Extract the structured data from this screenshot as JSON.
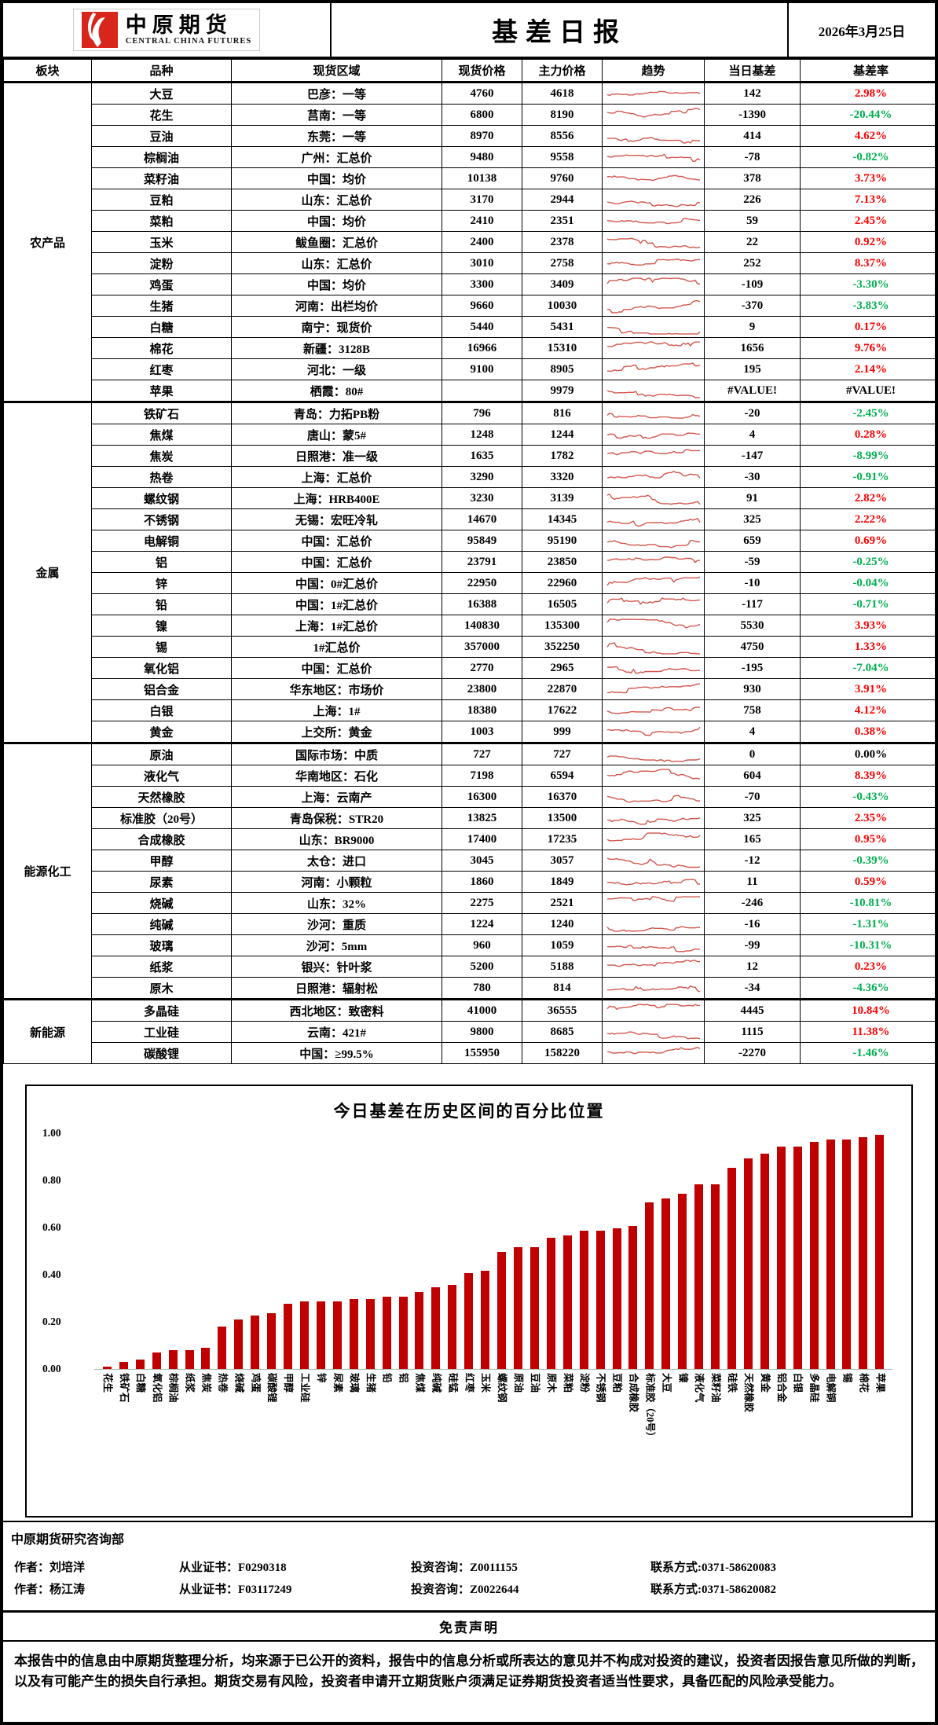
{
  "header": {
    "logo_cn": "中原期货",
    "logo_en": "CENTRAL CHINA FUTURES",
    "title": "基差日报",
    "date": "2026年3月25日"
  },
  "colors": {
    "positive": "#ff0000",
    "negative": "#00b050",
    "neutral": "#000000",
    "bar": "#c00000",
    "spark": "#d2564e",
    "logo_red": "#d9261c"
  },
  "table": {
    "columns": [
      "板块",
      "品种",
      "现货区域",
      "现货价格",
      "主力价格",
      "趋势",
      "当日基差",
      "基差率"
    ],
    "sections": [
      {
        "name": "农产品",
        "rows": [
          [
            "大豆",
            "巴彦：一等",
            "4760",
            "4618",
            "142",
            "2.98%"
          ],
          [
            "花生",
            "莒南：一等",
            "6800",
            "8190",
            "-1390",
            "-20.44%"
          ],
          [
            "豆油",
            "东莞：一等",
            "8970",
            "8556",
            "414",
            "4.62%"
          ],
          [
            "棕榈油",
            "广州：汇总价",
            "9480",
            "9558",
            "-78",
            "-0.82%"
          ],
          [
            "菜籽油",
            "中国：均价",
            "10138",
            "9760",
            "378",
            "3.73%"
          ],
          [
            "豆粕",
            "山东：汇总价",
            "3170",
            "2944",
            "226",
            "7.13%"
          ],
          [
            "菜粕",
            "中国：均价",
            "2410",
            "2351",
            "59",
            "2.45%"
          ],
          [
            "玉米",
            "鲅鱼圈：汇总价",
            "2400",
            "2378",
            "22",
            "0.92%"
          ],
          [
            "淀粉",
            "山东：汇总价",
            "3010",
            "2758",
            "252",
            "8.37%"
          ],
          [
            "鸡蛋",
            "中国：均价",
            "3300",
            "3409",
            "-109",
            "-3.30%"
          ],
          [
            "生猪",
            "河南：出栏均价",
            "9660",
            "10030",
            "-370",
            "-3.83%"
          ],
          [
            "白糖",
            "南宁：现货价",
            "5440",
            "5431",
            "9",
            "0.17%"
          ],
          [
            "棉花",
            "新疆：3128B",
            "16966",
            "15310",
            "1656",
            "9.76%"
          ],
          [
            "红枣",
            "河北：一级",
            "9100",
            "8905",
            "195",
            "2.14%"
          ],
          [
            "苹果",
            "栖霞：80#",
            "",
            "9979",
            "#VALUE!",
            "#VALUE!"
          ]
        ]
      },
      {
        "name": "金属",
        "rows": [
          [
            "铁矿石",
            "青岛：力拓PB粉",
            "796",
            "816",
            "-20",
            "-2.45%"
          ],
          [
            "焦煤",
            "唐山：蒙5#",
            "1248",
            "1244",
            "4",
            "0.28%"
          ],
          [
            "焦炭",
            "日照港：准一级",
            "1635",
            "1782",
            "-147",
            "-8.99%"
          ],
          [
            "热卷",
            "上海：汇总价",
            "3290",
            "3320",
            "-30",
            "-0.91%"
          ],
          [
            "螺纹钢",
            "上海：HRB400E",
            "3230",
            "3139",
            "91",
            "2.82%"
          ],
          [
            "不锈钢",
            "无锡：宏旺冷轧",
            "14670",
            "14345",
            "325",
            "2.22%"
          ],
          [
            "电解铜",
            "中国：汇总价",
            "95849",
            "95190",
            "659",
            "0.69%"
          ],
          [
            "铝",
            "中国：汇总价",
            "23791",
            "23850",
            "-59",
            "-0.25%"
          ],
          [
            "锌",
            "中国：0#汇总价",
            "22950",
            "22960",
            "-10",
            "-0.04%"
          ],
          [
            "铅",
            "中国：1#汇总价",
            "16388",
            "16505",
            "-117",
            "-0.71%"
          ],
          [
            "镍",
            "上海：1#汇总价",
            "140830",
            "135300",
            "5530",
            "3.93%"
          ],
          [
            "锡",
            "1#汇总价",
            "357000",
            "352250",
            "4750",
            "1.33%"
          ],
          [
            "氧化铝",
            "中国：汇总价",
            "2770",
            "2965",
            "-195",
            "-7.04%"
          ],
          [
            "铝合金",
            "华东地区：市场价",
            "23800",
            "22870",
            "930",
            "3.91%"
          ],
          [
            "白银",
            "上海：1#",
            "18380",
            "17622",
            "758",
            "4.12%"
          ],
          [
            "黄金",
            "上交所：黄金",
            "1003",
            "999",
            "4",
            "0.38%"
          ]
        ]
      },
      {
        "name": "能源化工",
        "rows": [
          [
            "原油",
            "国际市场：中质",
            "727",
            "727",
            "0",
            "0.00%"
          ],
          [
            "液化气",
            "华南地区：石化",
            "7198",
            "6594",
            "604",
            "8.39%"
          ],
          [
            "天然橡胶",
            "上海：云南产",
            "16300",
            "16370",
            "-70",
            "-0.43%"
          ],
          [
            "标准胶（20号）",
            "青岛保税：STR20",
            "13825",
            "13500",
            "325",
            "2.35%"
          ],
          [
            "合成橡胶",
            "山东：BR9000",
            "17400",
            "17235",
            "165",
            "0.95%"
          ],
          [
            "甲醇",
            "太仓：进口",
            "3045",
            "3057",
            "-12",
            "-0.39%"
          ],
          [
            "尿素",
            "河南：小颗粒",
            "1860",
            "1849",
            "11",
            "0.59%"
          ],
          [
            "烧碱",
            "山东：32%",
            "2275",
            "2521",
            "-246",
            "-10.81%"
          ],
          [
            "纯碱",
            "沙河：重质",
            "1224",
            "1240",
            "-16",
            "-1.31%"
          ],
          [
            "玻璃",
            "沙河：5mm",
            "960",
            "1059",
            "-99",
            "-10.31%"
          ],
          [
            "纸浆",
            "银兴：针叶浆",
            "5200",
            "5188",
            "12",
            "0.23%"
          ],
          [
            "原木",
            "日照港：辐射松",
            "780",
            "814",
            "-34",
            "-4.36%"
          ]
        ]
      },
      {
        "name": "新能源",
        "rows": [
          [
            "多晶硅",
            "西北地区：致密料",
            "41000",
            "36555",
            "4445",
            "10.84%"
          ],
          [
            "工业硅",
            "云南：421#",
            "9800",
            "8685",
            "1115",
            "11.38%"
          ],
          [
            "碳酸锂",
            "中国：≥99.5%",
            "155950",
            "158220",
            "-2270",
            "-1.46%"
          ]
        ]
      }
    ]
  },
  "chart_data": {
    "type": "bar",
    "title": "今日基差在历史区间的百分比位置",
    "xlabel": "",
    "ylabel": "",
    "ylim": [
      0,
      1
    ],
    "yticks": [
      "1.00",
      "0.80",
      "0.60",
      "0.40",
      "0.20",
      "0.00"
    ],
    "grid": false,
    "legend": "none",
    "bar_color": "#c00000",
    "categories": [
      "花生",
      "铁矿石",
      "白糖",
      "氧化铝",
      "棕榈油",
      "纸浆",
      "焦炭",
      "热卷",
      "烧碱",
      "鸡蛋",
      "碳酸锂",
      "甲醇",
      "工业硅",
      "锌",
      "尿素",
      "玻璃",
      "生猪",
      "铅",
      "铝",
      "焦煤",
      "纯碱",
      "硅锰",
      "红枣",
      "玉米",
      "螺纹钢",
      "原油",
      "豆油",
      "原木",
      "菜粕",
      "淀粉",
      "不锈钢",
      "豆粕",
      "合成橡胶",
      "标准胶（20号）",
      "大豆",
      "镍",
      "液化气",
      "菜籽油",
      "硅铁",
      "天然橡胶",
      "黄金",
      "铝合金",
      "白银",
      "多晶硅",
      "电解铜",
      "锡",
      "棉花",
      "苹果"
    ],
    "values": [
      0.01,
      0.03,
      0.04,
      0.07,
      0.08,
      0.08,
      0.09,
      0.18,
      0.21,
      0.23,
      0.24,
      0.28,
      0.29,
      0.29,
      0.29,
      0.3,
      0.3,
      0.31,
      0.31,
      0.33,
      0.35,
      0.36,
      0.41,
      0.42,
      0.5,
      0.52,
      0.52,
      0.56,
      0.57,
      0.59,
      0.59,
      0.6,
      0.61,
      0.71,
      0.73,
      0.75,
      0.79,
      0.79,
      0.86,
      0.9,
      0.92,
      0.95,
      0.95,
      0.97,
      0.98,
      0.98,
      0.99,
      1.0
    ]
  },
  "footer": {
    "department": "中原期货研究咨询部",
    "authors": [
      {
        "name": "作者：刘培洋",
        "cert": "从业证书：F0290318",
        "advisory": "投资咨询：Z0011155",
        "contact": "联系方式:0371-58620083"
      },
      {
        "name": "作者：杨江涛",
        "cert": "从业证书：F03117249",
        "advisory": "投资咨询：Z0022644",
        "contact": "联系方式:0371-58620082"
      }
    ],
    "disclaimer_title": "免责声明",
    "disclaimer": "本报告中的信息由中原期货整理分析，均来源于已公开的资料，报告中的信息分析或所表达的意见并不构成对投资的建议，投资者因报告意见所做的判断，以及有可能产生的损失自行承担。期货交易有风险，投资者申请开立期货账户须满足证券期货投资者适当性要求，具备匹配的风险承受能力。"
  }
}
